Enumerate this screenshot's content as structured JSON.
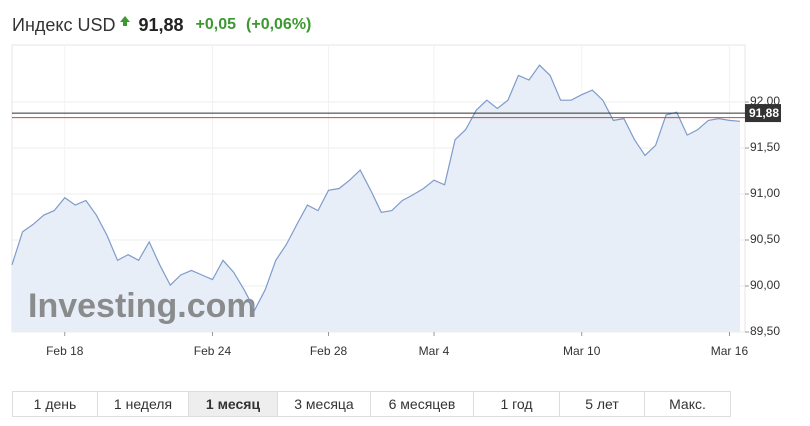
{
  "header": {
    "name": "Индекс USD",
    "price": "91,88",
    "change": "+0,05",
    "change_percent": "(+0,06%)"
  },
  "chart_data": {
    "type": "area",
    "watermark": "Investing.com",
    "color": "#7e9ccb",
    "fill": "#e8eef7",
    "values": [
      90.23,
      90.59,
      90.67,
      90.77,
      90.82,
      90.96,
      90.88,
      90.93,
      90.77,
      90.55,
      90.28,
      90.34,
      90.28,
      90.48,
      90.23,
      90.01,
      90.12,
      90.17,
      90.12,
      90.07,
      90.28,
      90.15,
      89.96,
      89.74,
      89.96,
      90.28,
      90.45,
      90.67,
      90.88,
      90.82,
      91.04,
      91.06,
      91.15,
      91.26,
      91.04,
      90.8,
      90.82,
      90.93,
      90.99,
      91.06,
      91.15,
      91.1,
      91.59,
      91.7,
      91.91,
      92.02,
      91.93,
      92.02,
      92.29,
      92.24,
      92.4,
      92.29,
      92.02,
      92.02,
      92.08,
      92.13,
      92.02,
      91.8,
      91.82,
      91.59,
      91.42,
      91.53,
      91.86,
      91.89,
      91.64,
      91.7,
      91.8,
      91.82,
      91.8,
      91.79
    ],
    "xlim": [
      0,
      69
    ],
    "xticks": [
      {
        "value": 5,
        "label": "Feb 18"
      },
      {
        "value": 19,
        "label": "Feb 24"
      },
      {
        "value": 30,
        "label": "Feb 28"
      },
      {
        "value": 40,
        "label": "Mar 4"
      },
      {
        "value": 54,
        "label": "Mar 10"
      },
      {
        "value": 68,
        "label": "Mar 16"
      }
    ],
    "ylim": [
      89.5,
      92.62
    ],
    "yticks": [
      {
        "value": 89.5,
        "label": "89,50"
      },
      {
        "value": 90,
        "label": "90,00"
      },
      {
        "value": 90.5,
        "label": "90,50"
      },
      {
        "value": 91,
        "label": "91,00"
      },
      {
        "value": 91.5,
        "label": "91,50"
      },
      {
        "value": 92,
        "label": "92,00"
      }
    ],
    "reference_lines": [
      {
        "value": 91.88,
        "color": "#333333",
        "label": "91,88"
      },
      {
        "value": 91.83,
        "color": "#d9413a"
      }
    ]
  },
  "ranges": {
    "items": [
      "1 день",
      "1 неделя",
      "1 месяц",
      "3 месяца",
      "6 месяцев",
      "1 год",
      "5 лет",
      "Макс."
    ],
    "active": 2
  }
}
